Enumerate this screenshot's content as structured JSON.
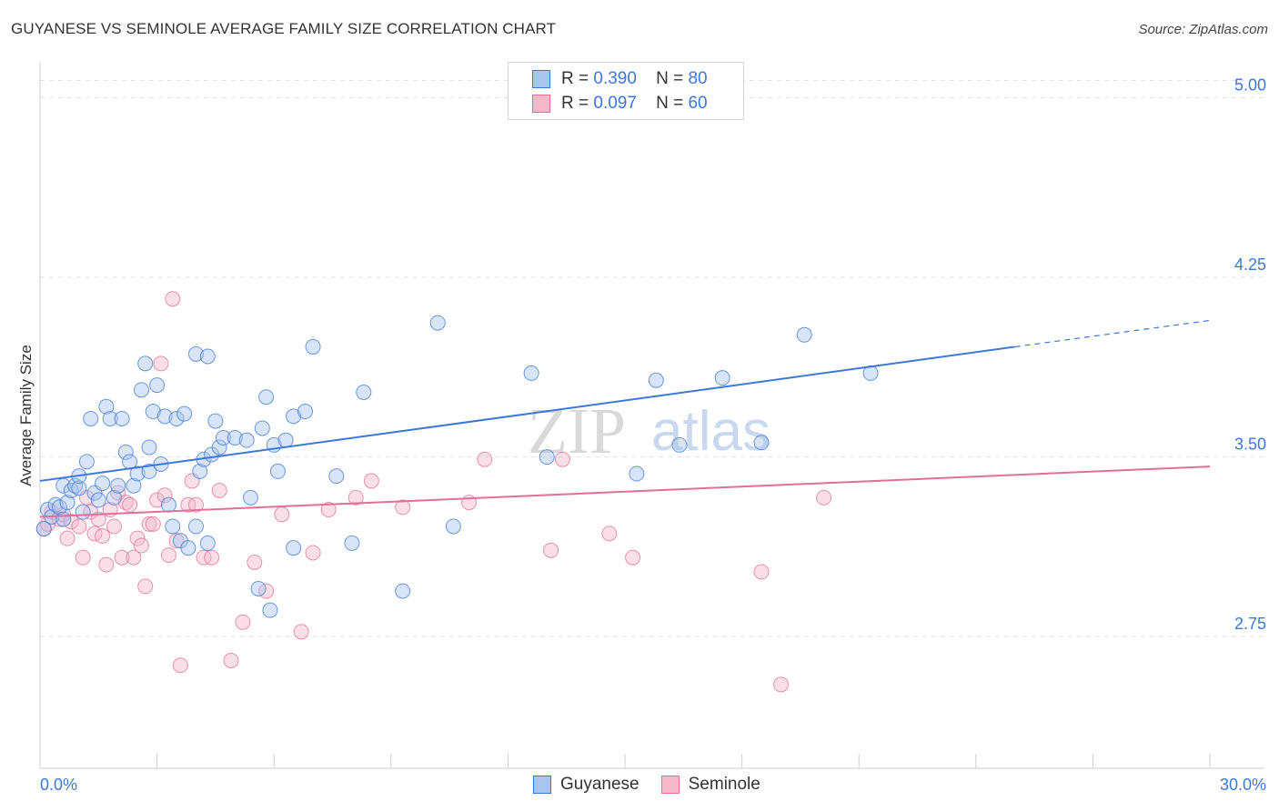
{
  "title": "GUYANESE VS SEMINOLE AVERAGE FAMILY SIZE CORRELATION CHART",
  "source": "Source: ZipAtlas.com",
  "legend": {
    "guyanese": {
      "r_label": "R =",
      "r_value": "0.390",
      "n_label": "N =",
      "n_value": "80"
    },
    "seminole": {
      "r_label": "R =",
      "r_value": "0.097",
      "n_label": "N =",
      "n_value": "60"
    }
  },
  "colors": {
    "guyanese": "#3d78d8",
    "seminole": "#e07099",
    "guyanese_fill": "#a9c4ef",
    "seminole_fill": "#f5b8cb"
  },
  "chart_data": {
    "type": "scatter",
    "title": "GUYANESE VS SEMINOLE AVERAGE FAMILY SIZE CORRELATION CHART",
    "xlabel": "",
    "ylabel": "Average Family Size",
    "xlim": [
      0,
      30
    ],
    "ylim": [
      2.2,
      5.15
    ],
    "x_tick_labels": [
      "0.0%",
      "30.0%"
    ],
    "y_ticks": [
      2.75,
      3.5,
      4.25,
      5.0
    ],
    "y_tick_labels": [
      "2.75",
      "3.50",
      "4.25",
      "5.00"
    ],
    "legend_entries": [
      "Guyanese",
      "Seminole"
    ],
    "watermark": "ZIPatlas",
    "series": [
      {
        "name": "Guyanese",
        "color": "#3d78d8",
        "trend": {
          "x0": 0.0,
          "y0": 3.4,
          "x1": 25.0,
          "y1": 3.96,
          "dash_to_x": 30.0,
          "dash_to_y": 4.07
        },
        "points": [
          [
            0.1,
            3.2
          ],
          [
            0.2,
            3.28
          ],
          [
            0.3,
            3.25
          ],
          [
            0.4,
            3.3
          ],
          [
            0.5,
            3.29
          ],
          [
            0.6,
            3.24
          ],
          [
            0.6,
            3.38
          ],
          [
            0.7,
            3.31
          ],
          [
            0.8,
            3.36
          ],
          [
            0.9,
            3.38
          ],
          [
            1.0,
            3.37
          ],
          [
            1.0,
            3.42
          ],
          [
            1.1,
            3.27
          ],
          [
            1.2,
            3.48
          ],
          [
            1.3,
            3.66
          ],
          [
            1.4,
            3.35
          ],
          [
            1.5,
            3.32
          ],
          [
            1.6,
            3.39
          ],
          [
            1.7,
            3.71
          ],
          [
            1.8,
            3.66
          ],
          [
            1.9,
            3.33
          ],
          [
            2.0,
            3.38
          ],
          [
            2.1,
            3.66
          ],
          [
            2.2,
            3.52
          ],
          [
            2.3,
            3.48
          ],
          [
            2.4,
            3.38
          ],
          [
            2.5,
            3.43
          ],
          [
            2.6,
            3.78
          ],
          [
            2.7,
            3.89
          ],
          [
            2.8,
            3.54
          ],
          [
            2.8,
            3.44
          ],
          [
            2.9,
            3.69
          ],
          [
            3.0,
            3.8
          ],
          [
            3.1,
            3.47
          ],
          [
            3.2,
            3.67
          ],
          [
            3.3,
            3.3
          ],
          [
            3.4,
            3.21
          ],
          [
            3.5,
            3.66
          ],
          [
            3.6,
            3.15
          ],
          [
            3.7,
            3.68
          ],
          [
            3.8,
            3.12
          ],
          [
            4.0,
            3.21
          ],
          [
            4.0,
            3.93
          ],
          [
            4.1,
            3.44
          ],
          [
            4.2,
            3.49
          ],
          [
            4.3,
            3.14
          ],
          [
            4.3,
            3.92
          ],
          [
            4.4,
            3.51
          ],
          [
            4.5,
            3.65
          ],
          [
            4.6,
            3.54
          ],
          [
            4.7,
            3.58
          ],
          [
            5.0,
            3.58
          ],
          [
            5.3,
            3.57
          ],
          [
            5.4,
            3.33
          ],
          [
            5.7,
            3.62
          ],
          [
            5.8,
            3.75
          ],
          [
            5.9,
            2.86
          ],
          [
            6.0,
            3.55
          ],
          [
            6.1,
            3.44
          ],
          [
            6.3,
            3.57
          ],
          [
            6.5,
            3.12
          ],
          [
            6.5,
            3.67
          ],
          [
            6.8,
            3.69
          ],
          [
            7.0,
            3.96
          ],
          [
            7.6,
            3.42
          ],
          [
            8.0,
            3.14
          ],
          [
            8.3,
            3.77
          ],
          [
            9.3,
            2.94
          ],
          [
            10.2,
            4.06
          ],
          [
            10.6,
            3.21
          ],
          [
            12.6,
            3.85
          ],
          [
            13.0,
            3.5
          ],
          [
            15.3,
            3.43
          ],
          [
            15.8,
            3.82
          ],
          [
            16.4,
            3.55
          ],
          [
            17.5,
            3.83
          ],
          [
            18.5,
            3.56
          ],
          [
            19.6,
            4.01
          ],
          [
            21.3,
            3.85
          ],
          [
            5.6,
            2.95
          ]
        ]
      },
      {
        "name": "Seminole",
        "color": "#e07099",
        "trend": {
          "x0": 0.0,
          "y0": 3.25,
          "x1": 30.0,
          "y1": 3.46
        },
        "points": [
          [
            0.1,
            3.2
          ],
          [
            0.2,
            3.22
          ],
          [
            0.3,
            3.27
          ],
          [
            0.5,
            3.24
          ],
          [
            0.6,
            3.26
          ],
          [
            0.7,
            3.16
          ],
          [
            0.8,
            3.23
          ],
          [
            1.0,
            3.21
          ],
          [
            1.1,
            3.08
          ],
          [
            1.2,
            3.33
          ],
          [
            1.3,
            3.27
          ],
          [
            1.4,
            3.18
          ],
          [
            1.5,
            3.24
          ],
          [
            1.6,
            3.17
          ],
          [
            1.7,
            3.05
          ],
          [
            1.8,
            3.28
          ],
          [
            1.9,
            3.21
          ],
          [
            2.0,
            3.35
          ],
          [
            2.1,
            3.08
          ],
          [
            2.2,
            3.31
          ],
          [
            2.3,
            3.3
          ],
          [
            2.4,
            3.08
          ],
          [
            2.5,
            3.16
          ],
          [
            2.6,
            3.13
          ],
          [
            2.7,
            2.96
          ],
          [
            2.8,
            3.22
          ],
          [
            2.9,
            3.22
          ],
          [
            3.0,
            3.32
          ],
          [
            3.1,
            3.89
          ],
          [
            3.2,
            3.34
          ],
          [
            3.3,
            3.09
          ],
          [
            3.4,
            4.16
          ],
          [
            3.5,
            3.15
          ],
          [
            3.6,
            2.63
          ],
          [
            3.8,
            3.3
          ],
          [
            3.9,
            3.4
          ],
          [
            4.0,
            3.3
          ],
          [
            4.2,
            3.08
          ],
          [
            4.4,
            3.08
          ],
          [
            4.6,
            3.36
          ],
          [
            4.9,
            2.65
          ],
          [
            5.2,
            2.81
          ],
          [
            5.5,
            3.06
          ],
          [
            5.8,
            2.94
          ],
          [
            6.2,
            3.26
          ],
          [
            6.7,
            2.77
          ],
          [
            7.0,
            3.1
          ],
          [
            7.4,
            3.28
          ],
          [
            8.1,
            3.33
          ],
          [
            8.5,
            3.4
          ],
          [
            9.3,
            3.29
          ],
          [
            11.0,
            3.31
          ],
          [
            11.4,
            3.49
          ],
          [
            13.1,
            3.11
          ],
          [
            13.4,
            3.49
          ],
          [
            14.6,
            3.18
          ],
          [
            15.2,
            3.08
          ],
          [
            18.5,
            3.02
          ],
          [
            20.1,
            3.33
          ],
          [
            19.0,
            2.55
          ]
        ]
      }
    ]
  },
  "bottom_legend": {
    "guyanese": "Guyanese",
    "seminole": "Seminole"
  }
}
